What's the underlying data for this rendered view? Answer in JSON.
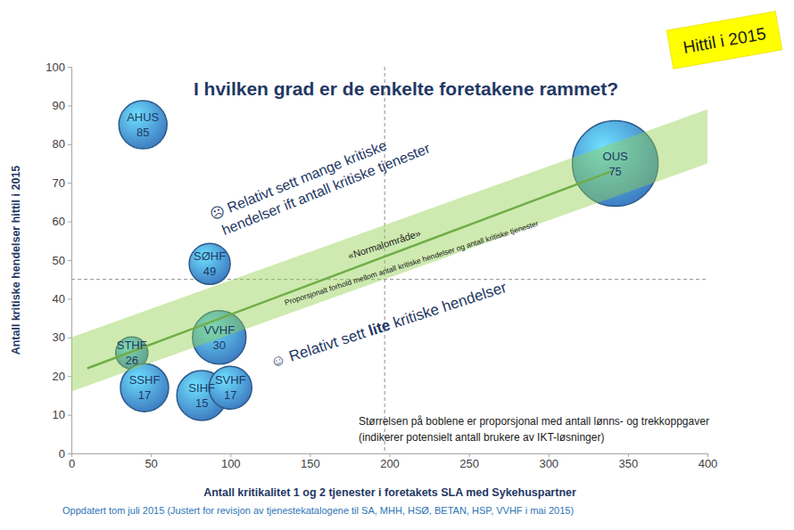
{
  "chart_data": {
    "type": "bubble",
    "title": "I hvilken grad er de enkelte foretakene rammet?",
    "badge": "Hittil i 2015",
    "x_label": "Antall kritikalitet 1 og 2 tjenester i foretakets SLA med Sykehuspartner",
    "y_label": "Antall kritiske hendelser hittil i 2015",
    "footnote": "Oppdatert tom juli 2015 (Justert for revisjon av tjenestekatalogene til SA, MHH, HSØ, BETAN, HSP, VVHF i mai 2015)",
    "names": [
      "AHUS",
      "OUS",
      "SØHF",
      "VVHF",
      "STHF",
      "SSHF",
      "SIHF",
      "SVHF"
    ],
    "x": [
      45,
      342,
      87,
      93,
      38,
      46,
      82,
      100
    ],
    "y": [
      85,
      75,
      49,
      30,
      26,
      17,
      15,
      17
    ],
    "sizes": [
      7270,
      23000,
      5280,
      8980,
      3230,
      7270,
      7830,
      5750
    ],
    "color": "#3f7fc4",
    "data_labels": true,
    "grid": false,
    "xlim": [
      0,
      400
    ],
    "xticks": [
      0,
      50,
      100,
      150,
      200,
      250,
      300,
      350,
      400
    ],
    "ylim": [
      0,
      100
    ],
    "yticks": [
      0,
      10,
      20,
      30,
      40,
      50,
      60,
      70,
      80,
      90,
      100
    ],
    "trend": {
      "x": [
        10,
        340
      ],
      "y": [
        22,
        73
      ],
      "color": "#70ad47"
    },
    "band": {
      "x": [
        0,
        400
      ],
      "lower": [
        16,
        75
      ],
      "upper": [
        30,
        89
      ],
      "color": "#92d050"
    },
    "reference_lines": {
      "x": 197,
      "y": 45
    },
    "annotations": {
      "many": [
        "☹ Relativt sett mange kritiske",
        "hendelser ift antall kritiske tjenester"
      ],
      "normal": "«Normalområde»",
      "proportional": "Proporsjonalt forhold mellom antall kritiske hendelser og antall kritiske tjenester",
      "few": [
        "☺ Relativt sett ",
        "lite",
        " kritiske hendelser"
      ],
      "size_note": [
        "Størrelsen på boblene er proporsjonal med antall lønns- og trekkoppgaver",
        "(indikerer potensielt antall brukere av IKT-løsninger)"
      ]
    }
  }
}
